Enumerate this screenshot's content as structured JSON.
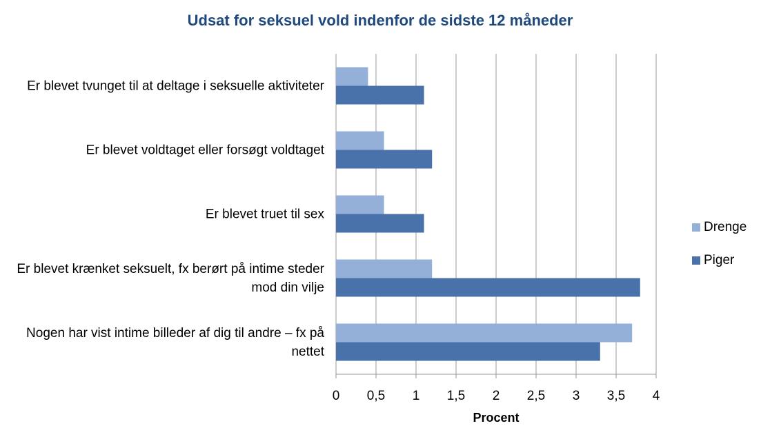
{
  "chart_data": {
    "type": "bar",
    "orientation": "horizontal",
    "title": "Udsat for seksuel vold indenfor de sidste 12 måneder",
    "x_label": "Procent",
    "categories": [
      "Er blevet tvunget til at deltage i seksuelle aktiviteter",
      "Er blevet voldtaget eller forsøgt voldtaget",
      "Er blevet truet til sex",
      "Er blevet krænket seksuelt, fx berørt på intime steder mod din vilje",
      "Nogen har vist intime billeder af dig til andre – fx på nettet"
    ],
    "series": [
      {
        "name": "Drenge",
        "color": "#95b0d8",
        "values": [
          0.4,
          0.6,
          0.6,
          1.2,
          3.7
        ]
      },
      {
        "name": "Piger",
        "color": "#4a72aa",
        "values": [
          1.1,
          1.2,
          1.1,
          3.8,
          3.3
        ]
      }
    ],
    "xlim": [
      0,
      4
    ],
    "xticks": [
      0,
      {
        "value": 0.5,
        "label": "0,5"
      },
      1,
      {
        "value": 1.5,
        "label": "1,5"
      },
      2,
      {
        "value": 2.5,
        "label": "2,5"
      },
      3,
      {
        "value": 3.5,
        "label": "3,5"
      },
      4
    ],
    "grid": true,
    "legend": "right"
  }
}
